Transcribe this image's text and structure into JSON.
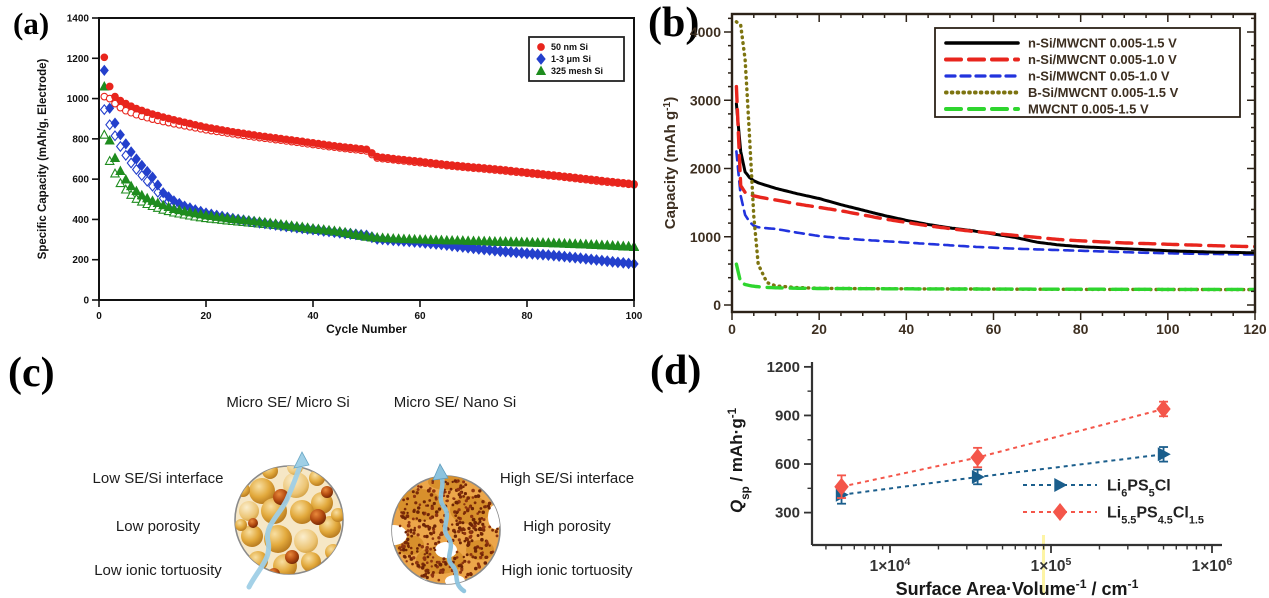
{
  "figure": {
    "background": "#ffffff"
  },
  "panels": {
    "a": {
      "label": "(a)"
    },
    "b": {
      "label": "(b)"
    },
    "c": {
      "label": "(c)",
      "left_title": "Micro SE/ Micro Si",
      "right_title": "Micro SE/ Nano Si",
      "left_labels": [
        "Low SE/Si interface",
        "Low porosity",
        "Low ionic tortuosity"
      ],
      "right_labels": [
        "High SE/Si interface",
        "High porosity",
        "High ionic tortuosity"
      ]
    },
    "d": {
      "label": "(d)"
    }
  },
  "chart_data": [
    {
      "panel": "a",
      "type": "scatter",
      "title": "",
      "xlabel": "Cycle Number",
      "ylabel": "Specific Capacity (mAh/g, Electrode)",
      "xlim": [
        0,
        100
      ],
      "ylim": [
        0,
        1400
      ],
      "xticks": [
        0,
        20,
        40,
        60,
        80,
        100
      ],
      "yticks": [
        0,
        200,
        400,
        600,
        800,
        1000,
        1200,
        1400
      ],
      "grid": false,
      "legend": {
        "position": "top-right",
        "entries": [
          {
            "label": "50 nm Si",
            "marker": "circle",
            "color": "#e8251d"
          },
          {
            "label": "1-3 μm Si",
            "marker": "diamond",
            "color": "#2440cc"
          },
          {
            "label": "325 mesh Si",
            "marker": "triangle",
            "color": "#1e8c1e"
          }
        ]
      },
      "x": [
        1,
        2,
        3,
        4,
        5,
        6,
        7,
        8,
        9,
        10,
        12,
        14,
        16,
        18,
        20,
        25,
        30,
        35,
        40,
        45,
        50,
        52,
        55,
        60,
        65,
        70,
        75,
        80,
        85,
        90,
        95,
        100
      ],
      "series": [
        {
          "name": "50 nm Si (charge, open)",
          "marker": "circle",
          "fill": "open",
          "color": "#e8251d",
          "values": [
            1010,
            1000,
            975,
            955,
            940,
            930,
            920,
            912,
            905,
            898,
            886,
            875,
            865,
            855,
            845,
            825,
            806,
            790,
            772,
            755,
            740,
            705,
            696,
            682,
            667,
            655,
            643,
            629,
            615,
            600,
            585,
            572
          ]
        },
        {
          "name": "1-3 μm Si (charge, open)",
          "marker": "diamond",
          "fill": "open",
          "color": "#2440cc",
          "values": [
            945,
            870,
            815,
            762,
            718,
            680,
            648,
            618,
            590,
            565,
            505,
            472,
            452,
            437,
            424,
            400,
            382,
            364,
            348,
            332,
            318,
            302,
            295,
            285,
            271,
            255,
            241,
            230,
            219,
            206,
            191,
            178
          ]
        },
        {
          "name": "325 mesh Si (charge, open)",
          "marker": "triangle",
          "fill": "open",
          "color": "#1e8c1e",
          "values": [
            820,
            690,
            628,
            580,
            548,
            522,
            502,
            488,
            476,
            466,
            448,
            434,
            424,
            414,
            406,
            392,
            380,
            366,
            350,
            336,
            314,
            307,
            302,
            297,
            294,
            291,
            288,
            285,
            281,
            276,
            270,
            263
          ]
        },
        {
          "name": "50 nm Si (discharge, filled)",
          "marker": "circle",
          "fill": "filled",
          "color": "#e8251d",
          "values": [
            1205,
            1060,
            1010,
            990,
            975,
            962,
            950,
            941,
            932,
            923,
            908,
            894,
            882,
            870,
            858,
            835,
            815,
            798,
            780,
            762,
            748,
            712,
            702,
            688,
            672,
            660,
            648,
            634,
            620,
            605,
            590,
            576
          ]
        },
        {
          "name": "1-3 μm Si (discharge, filled)",
          "marker": "diamond",
          "fill": "filled",
          "color": "#2440cc",
          "values": [
            1140,
            952,
            878,
            820,
            775,
            735,
            700,
            668,
            638,
            610,
            532,
            492,
            466,
            448,
            432,
            405,
            386,
            368,
            352,
            336,
            322,
            305,
            298,
            288,
            274,
            258,
            244,
            233,
            222,
            209,
            194,
            180
          ]
        },
        {
          "name": "325 mesh Si (discharge, filled)",
          "marker": "triangle",
          "fill": "filled",
          "color": "#1e8c1e",
          "values": [
            1060,
            792,
            705,
            640,
            598,
            565,
            540,
            520,
            505,
            492,
            470,
            452,
            440,
            430,
            420,
            402,
            388,
            372,
            355,
            340,
            318,
            310,
            305,
            300,
            296,
            293,
            290,
            287,
            283,
            278,
            272,
            265
          ]
        }
      ]
    },
    {
      "panel": "b",
      "type": "line",
      "title": "",
      "xlabel": "",
      "ylabel": "Capacity (mAh g^-1^)",
      "xlim": [
        0,
        120
      ],
      "ylim": [
        0,
        4260
      ],
      "xticks": [
        0,
        20,
        40,
        60,
        80,
        100,
        120
      ],
      "yticks": [
        0,
        1000,
        2000,
        3000,
        4000
      ],
      "x_minor_step": 5,
      "y_minor_step": 200,
      "grid": false,
      "text_color": "#3d2f21",
      "legend": {
        "position": "top-right",
        "entries": [
          {
            "label": "n-Si/MWCNT 0.005-1.5 V",
            "color": "#000000",
            "dash": "solid",
            "width": 3
          },
          {
            "label": "n-Si/MWCNT 0.005-1.0 V",
            "color": "#e8251d",
            "dash": "long-dash",
            "width": 3.4
          },
          {
            "label": "n-Si/MWCNT 0.05-1.0 V",
            "color": "#2233dd",
            "dash": "dash",
            "width": 2.6
          },
          {
            "label": "B-Si/MWCNT 0.005-1.5 V",
            "color": "#7d7410",
            "dash": "dot",
            "width": 3.4
          },
          {
            "label": "MWCNT 0.005-1.5 V",
            "color": "#2ed52e",
            "dash": "long-dash",
            "width": 3.4
          }
        ]
      },
      "x": [
        1,
        2,
        3,
        4,
        5,
        6,
        8,
        10,
        15,
        20,
        25,
        30,
        35,
        40,
        45,
        50,
        55,
        60,
        65,
        70,
        75,
        80,
        85,
        90,
        95,
        100,
        105,
        110,
        115,
        120
      ],
      "series": [
        {
          "name": "n-Si/MWCNT 0.005-1.5 V",
          "color": "#000000",
          "dash": "solid",
          "width": 3,
          "values": [
            2950,
            2250,
            1950,
            1870,
            1820,
            1790,
            1750,
            1710,
            1630,
            1560,
            1470,
            1390,
            1310,
            1240,
            1180,
            1130,
            1090,
            1040,
            990,
            920,
            880,
            855,
            840,
            825,
            810,
            795,
            785,
            775,
            770,
            765
          ]
        },
        {
          "name": "n-Si/MWCNT 0.005-1.0 V",
          "color": "#e8251d",
          "dash": "long-dash",
          "width": 3.4,
          "values": [
            3200,
            1750,
            1650,
            1620,
            1600,
            1585,
            1560,
            1540,
            1480,
            1430,
            1380,
            1320,
            1260,
            1210,
            1160,
            1120,
            1080,
            1050,
            1020,
            990,
            960,
            940,
            925,
            910,
            900,
            890,
            880,
            870,
            862,
            855
          ]
        },
        {
          "name": "n-Si/MWCNT 0.05-1.0 V",
          "color": "#2233dd",
          "dash": "dash",
          "width": 2.6,
          "values": [
            2250,
            1600,
            1320,
            1220,
            1160,
            1140,
            1125,
            1115,
            1060,
            1010,
            980,
            955,
            935,
            915,
            895,
            875,
            855,
            840,
            825,
            815,
            805,
            795,
            785,
            775,
            765,
            758,
            752,
            748,
            744,
            740
          ]
        },
        {
          "name": "B-Si/MWCNT 0.005-1.5 V",
          "color": "#7d7410",
          "dash": "dot",
          "width": 3.4,
          "values": [
            4150,
            4100,
            3600,
            2500,
            1300,
            600,
            330,
            280,
            255,
            245,
            242,
            240,
            238,
            237,
            236,
            235,
            234,
            233,
            232,
            231,
            230,
            229,
            229,
            228,
            228,
            227,
            227,
            226,
            226,
            225
          ]
        },
        {
          "name": "MWCNT 0.005-1.5 V",
          "color": "#2ed52e",
          "dash": "long-dash",
          "width": 3.4,
          "values": [
            600,
            330,
            300,
            285,
            275,
            268,
            258,
            252,
            245,
            242,
            240,
            239,
            238,
            237,
            236,
            235,
            234,
            233,
            233,
            232,
            232,
            231,
            231,
            230,
            230,
            229,
            229,
            228,
            228,
            228
          ]
        }
      ]
    },
    {
      "panel": "d",
      "type": "scatter",
      "title": "",
      "xlabel": "Surface Area·Volume^-1^ / cm^-1^",
      "ylabel": "*Q*~sp~ / mAh·g^-1^",
      "xscale": "log",
      "xlim": [
        3200,
        1300000
      ],
      "ylim": [
        100,
        1230
      ],
      "xticks": [
        10000,
        100000,
        1000000
      ],
      "xtick_labels": [
        "1×10^4^",
        "1×10^5^",
        "1×10^6^"
      ],
      "yticks": [
        300,
        600,
        900,
        1200
      ],
      "grid": false,
      "legend": {
        "position": "bottom-right"
      },
      "x": [
        5000,
        35000,
        500000
      ],
      "series": [
        {
          "name": "Li~6~PS~5~Cl",
          "color": "#1b5e8c",
          "marker": "triangle-right",
          "dash": "dot-line",
          "values": [
            410,
            520,
            660
          ],
          "errors": [
            55,
            45,
            45
          ]
        },
        {
          "name": "Li~5.5~PS~4.5~Cl~1.5~",
          "color": "#f4564a",
          "marker": "diamond",
          "dash": "dot-line",
          "values": [
            460,
            640,
            940
          ],
          "errors": [
            70,
            60,
            45
          ]
        }
      ]
    }
  ]
}
